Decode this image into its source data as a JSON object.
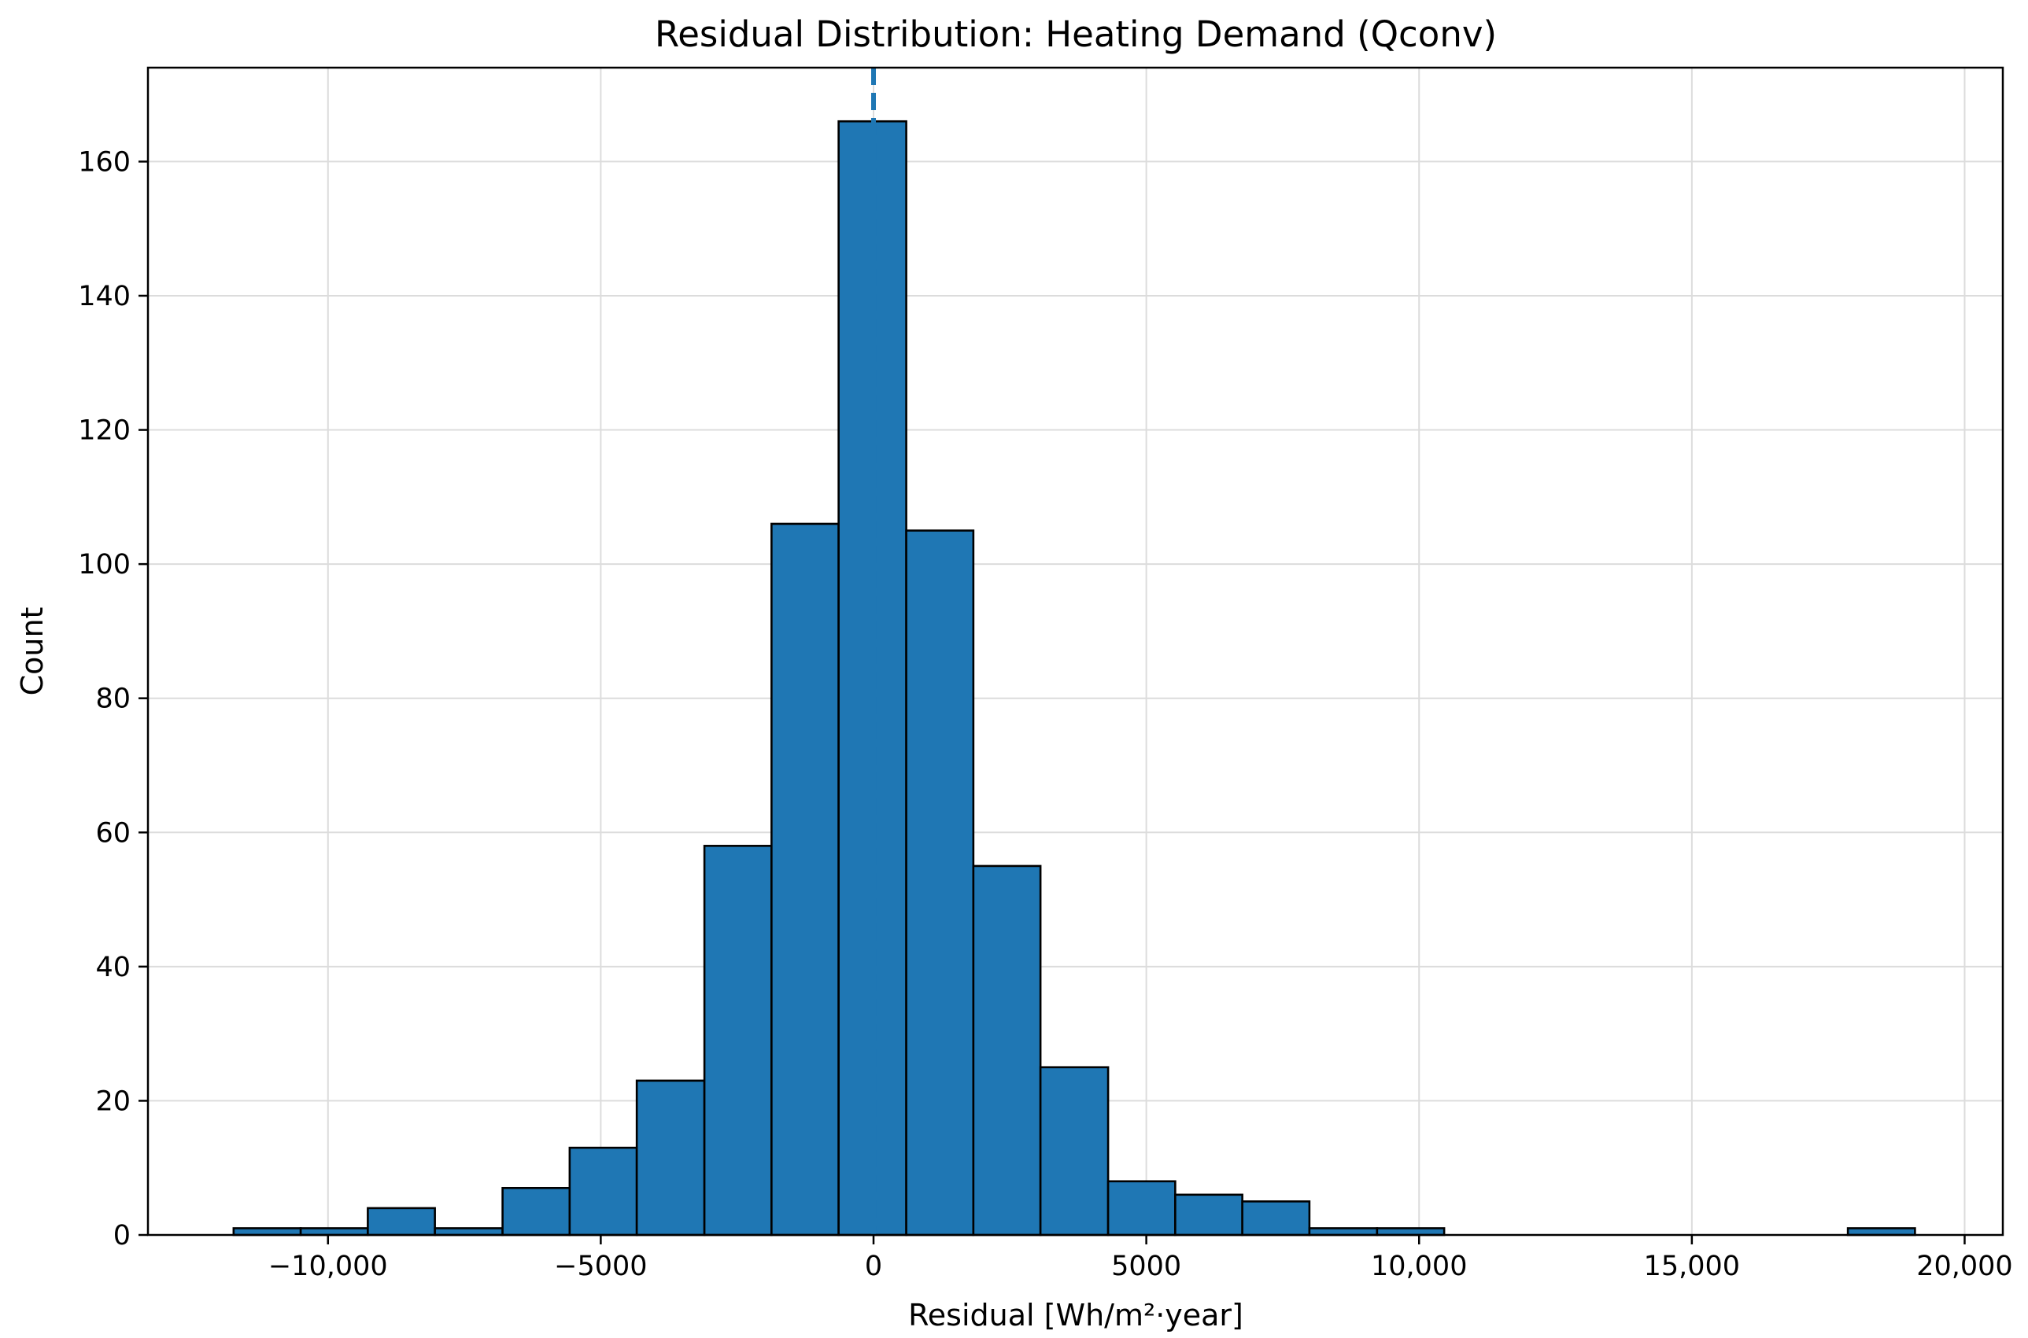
{
  "chart_data": {
    "type": "bar",
    "title": "Residual Distribution: Heating Demand (Qconv)",
    "xlabel": "Residual [Wh/m²·year]",
    "ylabel": "Count",
    "xlim": [
      -13300,
      20700
    ],
    "ylim": [
      0,
      174
    ],
    "xticks": [
      {
        "value": -10000,
        "label": "−10,000"
      },
      {
        "value": -5000,
        "label": "−5000"
      },
      {
        "value": 0,
        "label": "0"
      },
      {
        "value": 5000,
        "label": "5000"
      },
      {
        "value": 10000,
        "label": "10,000"
      },
      {
        "value": 15000,
        "label": "15,000"
      },
      {
        "value": 20000,
        "label": "20,000"
      }
    ],
    "yticks": [
      {
        "value": 0,
        "label": "0"
      },
      {
        "value": 20,
        "label": "20"
      },
      {
        "value": 40,
        "label": "40"
      },
      {
        "value": 60,
        "label": "60"
      },
      {
        "value": 80,
        "label": "80"
      },
      {
        "value": 100,
        "label": "100"
      },
      {
        "value": 120,
        "label": "120"
      },
      {
        "value": 140,
        "label": "140"
      },
      {
        "value": 160,
        "label": "160"
      }
    ],
    "grid": true,
    "reference_line": {
      "x": 0,
      "style": "dashed",
      "color": "#1f77b4"
    },
    "bar_color": "#1f77b4",
    "edge_color": "#000000",
    "bins": [
      {
        "start": -11730,
        "end": -10500,
        "count": 1
      },
      {
        "start": -10500,
        "end": -9270,
        "count": 1
      },
      {
        "start": -9270,
        "end": -8040,
        "count": 4
      },
      {
        "start": -8040,
        "end": -6800,
        "count": 1
      },
      {
        "start": -6800,
        "end": -5570,
        "count": 7
      },
      {
        "start": -5570,
        "end": -4340,
        "count": 13
      },
      {
        "start": -4340,
        "end": -3100,
        "count": 23
      },
      {
        "start": -3100,
        "end": -1870,
        "count": 58
      },
      {
        "start": -1870,
        "end": -640,
        "count": 106
      },
      {
        "start": -640,
        "end": 600,
        "count": 166
      },
      {
        "start": 600,
        "end": 1830,
        "count": 105
      },
      {
        "start": 1830,
        "end": 3060,
        "count": 55
      },
      {
        "start": 3060,
        "end": 4300,
        "count": 25
      },
      {
        "start": 4300,
        "end": 5530,
        "count": 8
      },
      {
        "start": 5530,
        "end": 6760,
        "count": 6
      },
      {
        "start": 6760,
        "end": 7990,
        "count": 5
      },
      {
        "start": 7990,
        "end": 9230,
        "count": 1
      },
      {
        "start": 9230,
        "end": 10460,
        "count": 1
      },
      {
        "start": 10460,
        "end": 11690,
        "count": 0
      },
      {
        "start": 11690,
        "end": 12930,
        "count": 0
      },
      {
        "start": 12930,
        "end": 14160,
        "count": 0
      },
      {
        "start": 14160,
        "end": 15390,
        "count": 0
      },
      {
        "start": 15390,
        "end": 16630,
        "count": 0
      },
      {
        "start": 16630,
        "end": 17860,
        "count": 0
      },
      {
        "start": 17860,
        "end": 19090,
        "count": 1
      }
    ]
  }
}
